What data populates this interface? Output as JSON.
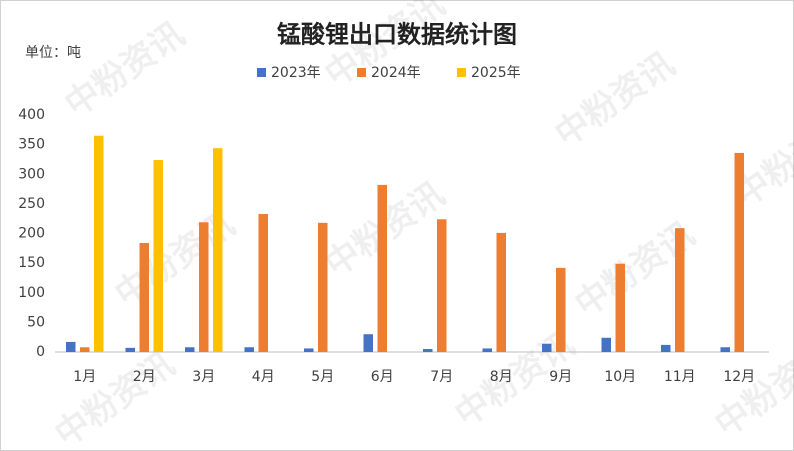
{
  "chart_data": {
    "type": "bar",
    "title": "锰酸锂出口数据统计图",
    "unit_label": "单位：吨",
    "watermark": "中粉资讯",
    "categories": [
      "1月",
      "2月",
      "3月",
      "4月",
      "5月",
      "6月",
      "7月",
      "8月",
      "9月",
      "10月",
      "11月",
      "12月"
    ],
    "series": [
      {
        "name": "2023年",
        "color": "#4472c4",
        "values": [
          17,
          7,
          8,
          8,
          6,
          30,
          5,
          6,
          14,
          24,
          12,
          8
        ]
      },
      {
        "name": "2024年",
        "color": "#ed7d31",
        "values": [
          8,
          184,
          219,
          233,
          218,
          282,
          224,
          201,
          142,
          149,
          209,
          336
        ]
      },
      {
        "name": "2025年",
        "color": "#ffc000",
        "values": [
          365,
          324,
          344,
          null,
          null,
          null,
          null,
          null,
          null,
          null,
          null,
          null
        ]
      }
    ],
    "ylim": [
      0,
      400
    ],
    "yticks": [
      0,
      50,
      100,
      150,
      200,
      250,
      300,
      350,
      400
    ],
    "grid": false,
    "legend": "top"
  }
}
